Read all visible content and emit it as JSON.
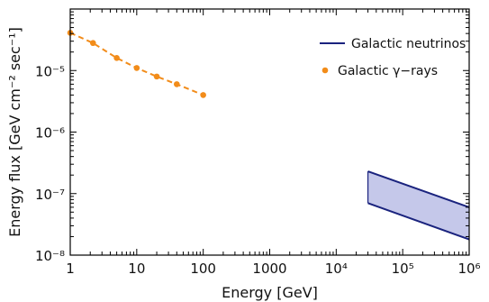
{
  "chart_data": {
    "type": "line",
    "xlabel": "Energy [GeV]",
    "ylabel": "Energy flux [GeV cm⁻² sec⁻¹]",
    "x_scale": "log",
    "y_scale": "log",
    "xlim": [
      1,
      1000000
    ],
    "ylim": [
      1e-08,
      0.0001
    ],
    "grid": false,
    "legend_position": "top-right",
    "x_ticks": [
      {
        "value": 1,
        "label": "1"
      },
      {
        "value": 10,
        "label": "10"
      },
      {
        "value": 100,
        "label": "100"
      },
      {
        "value": 1000,
        "label": "1000"
      },
      {
        "value": 10000,
        "label": "10⁴"
      },
      {
        "value": 100000,
        "label": "10⁵"
      },
      {
        "value": 1000000,
        "label": "10⁶"
      }
    ],
    "y_ticks": [
      {
        "value": 1e-08,
        "label": "10⁻⁸"
      },
      {
        "value": 1e-07,
        "label": "10⁻⁷"
      },
      {
        "value": 1e-06,
        "label": "10⁻⁶"
      },
      {
        "value": 1e-05,
        "label": "10⁻⁵"
      }
    ],
    "series": [
      {
        "name": "Galactic γ−rays",
        "style": "dashed-line-with-markers",
        "color": "#f28c1a",
        "x": [
          1,
          2.2,
          5,
          10,
          20,
          40,
          100
        ],
        "y": [
          4.1e-05,
          2.8e-05,
          1.6e-05,
          1.1e-05,
          8e-06,
          6e-06,
          4e-06
        ]
      },
      {
        "name": "Galactic neutrinos",
        "style": "band",
        "color": "#1a237e",
        "fill_color": "#c5c8ea",
        "x": [
          30000,
          1000000
        ],
        "y_upper": [
          2.3e-07,
          6e-08
        ],
        "y_lower": [
          7e-08,
          1.8e-08
        ]
      }
    ]
  }
}
